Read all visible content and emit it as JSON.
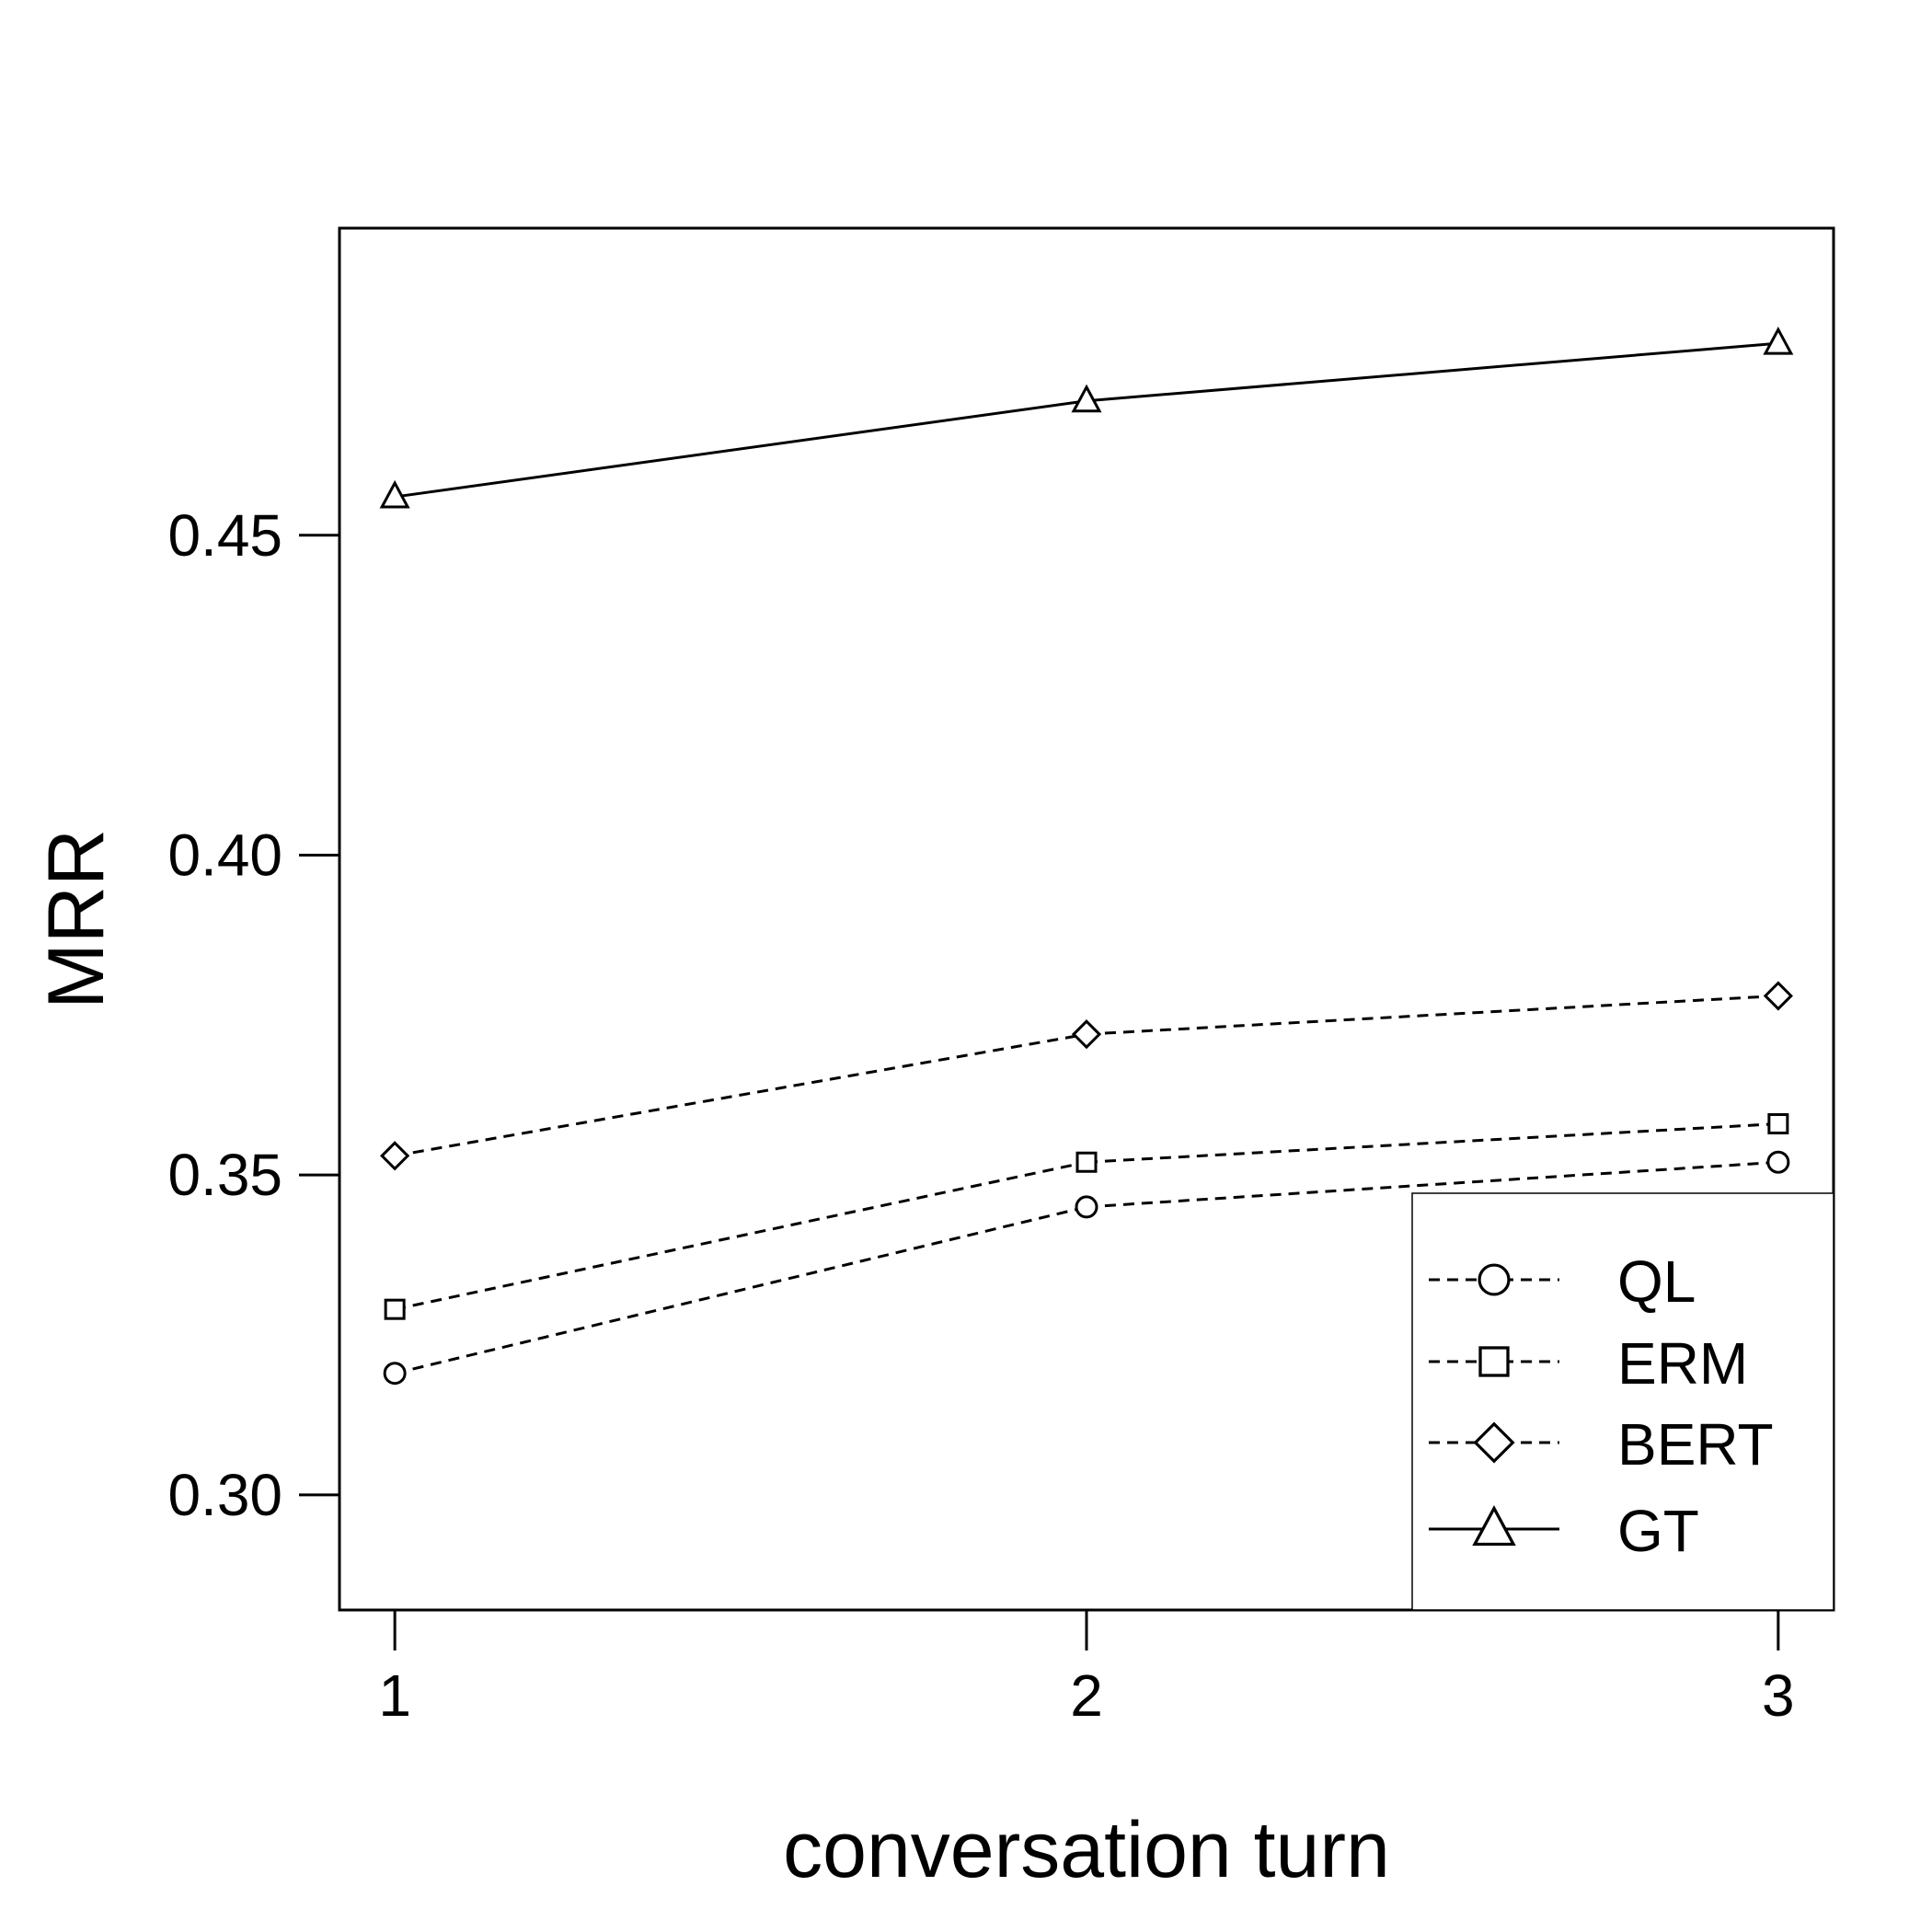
{
  "chart_data": {
    "type": "line",
    "title": "",
    "xlabel": "conversation turn",
    "ylabel": "MRR",
    "x": [
      1,
      2,
      3
    ],
    "xticks": [
      "1",
      "2",
      "3"
    ],
    "xlim": [
      0.92,
      3.08
    ],
    "yticks": [
      "0.30",
      "0.35",
      "0.40",
      "0.45"
    ],
    "ylim": [
      0.282,
      0.498
    ],
    "grid": false,
    "legend_position": "bottom-right",
    "series": [
      {
        "name": "QL",
        "marker": "circle",
        "line": "dashed",
        "values": [
          0.319,
          0.345,
          0.352
        ]
      },
      {
        "name": "ERM",
        "marker": "square",
        "line": "dashed",
        "values": [
          0.329,
          0.352,
          0.358
        ]
      },
      {
        "name": "BERT",
        "marker": "diamond",
        "line": "dashed",
        "values": [
          0.353,
          0.372,
          0.378
        ]
      },
      {
        "name": "GT",
        "marker": "triangle",
        "line": "solid",
        "values": [
          0.456,
          0.471,
          0.48
        ]
      }
    ]
  }
}
